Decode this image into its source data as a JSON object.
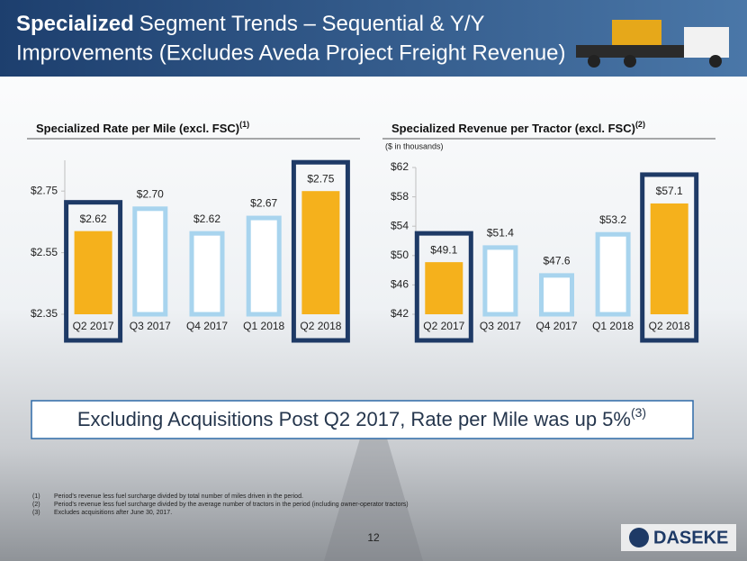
{
  "header": {
    "title_bold": "Specialized",
    "title_line1": "Segment Trends – Sequential & Y/Y",
    "title_line2": "Improvements (Excludes Aveda Project Freight Revenue)"
  },
  "chart_data": [
    {
      "type": "bar",
      "title": "Specialized Rate per Mile (excl. FSC)",
      "title_sup": "(1)",
      "categories": [
        "Q2 2017",
        "Q3 2017",
        "Q4 2017",
        "Q1 2018",
        "Q2 2018"
      ],
      "values": [
        2.62,
        2.7,
        2.62,
        2.67,
        2.75
      ],
      "value_labels": [
        "$2.62",
        "$2.70",
        "$2.62",
        "$2.67",
        "$2.75"
      ],
      "hollow": [
        false,
        true,
        true,
        true,
        false
      ],
      "color": "#f5b11c",
      "hollow_color": "#a8d4ee",
      "ylim": [
        2.35,
        2.85
      ],
      "yticks": [
        {
          "value": 2.35,
          "label": "$2.35"
        },
        {
          "value": 2.55,
          "label": "$2.55"
        },
        {
          "value": 2.75,
          "label": "$2.75"
        }
      ]
    },
    {
      "type": "bar",
      "title": "Specialized Revenue per Tractor (excl. FSC)",
      "title_sup": "(2)",
      "subtitle": "($ in thousands)",
      "categories": [
        "Q2 2017",
        "Q3 2017",
        "Q4 2017",
        "Q1 2018",
        "Q2 2018"
      ],
      "values": [
        49.1,
        51.4,
        47.6,
        53.2,
        57.1
      ],
      "value_labels": [
        "$49.1",
        "$51.4",
        "$47.6",
        "$53.2",
        "$57.1"
      ],
      "hollow": [
        false,
        true,
        true,
        true,
        false
      ],
      "color": "#f5b11c",
      "hollow_color": "#a8d4ee",
      "ylim": [
        42,
        62
      ],
      "yticks": [
        {
          "value": 42,
          "label": "$42"
        },
        {
          "value": 46,
          "label": "$46"
        },
        {
          "value": 50,
          "label": "$50"
        },
        {
          "value": 54,
          "label": "$54"
        },
        {
          "value": 58,
          "label": "$58"
        },
        {
          "value": 62,
          "label": "$62"
        }
      ]
    }
  ],
  "callout": {
    "text": "Excluding Acquisitions Post Q2 2017, Rate per Mile was up 5%",
    "sup": "(3)"
  },
  "footnotes": [
    {
      "marker": "(1)",
      "text": "Period’s revenue less fuel surcharge divided by total number of miles driven in the period."
    },
    {
      "marker": "(2)",
      "text": "Period’s revenue less fuel surcharge divided by the average number of tractors in the period (including owner-operator tractors)"
    },
    {
      "marker": "(3)",
      "text": "Excludes acquisitions after June 30, 2017."
    }
  ],
  "page_number": "12",
  "logo": "DASEKE"
}
